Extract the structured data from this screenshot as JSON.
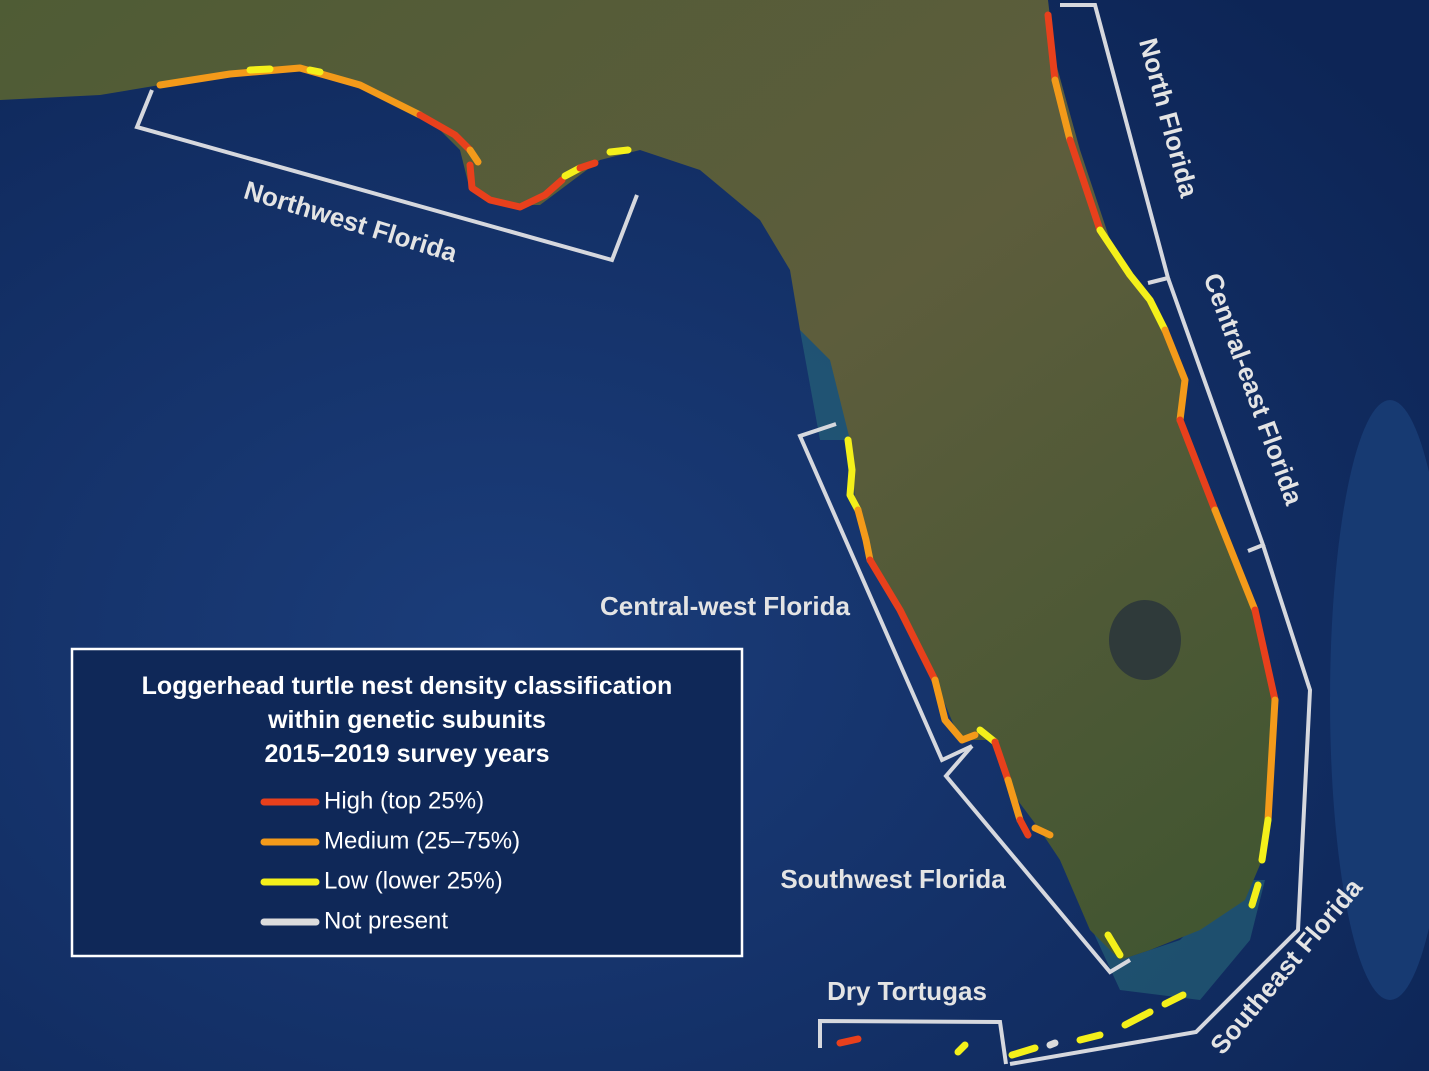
{
  "regions": [
    {
      "label": "Northwest Florida"
    },
    {
      "label": "North Florida"
    },
    {
      "label": "Central-east Florida"
    },
    {
      "label": "Central-west Florida"
    },
    {
      "label": "Southwest Florida"
    },
    {
      "label": "Dry Tortugas"
    },
    {
      "label": "Southeast Florida"
    }
  ],
  "legend": {
    "title": [
      "Loggerhead turtle nest density classification",
      "within genetic subunits",
      "2015–2019 survey years"
    ],
    "items": [
      {
        "label": "High (top 25%)",
        "color": "#e8401c"
      },
      {
        "label": "Medium (25–75%)",
        "color": "#f39a1a"
      },
      {
        "label": "Low (lower 25%)",
        "color": "#f4f01a"
      },
      {
        "label": "Not present",
        "color": "#dcdcdc"
      }
    ]
  }
}
